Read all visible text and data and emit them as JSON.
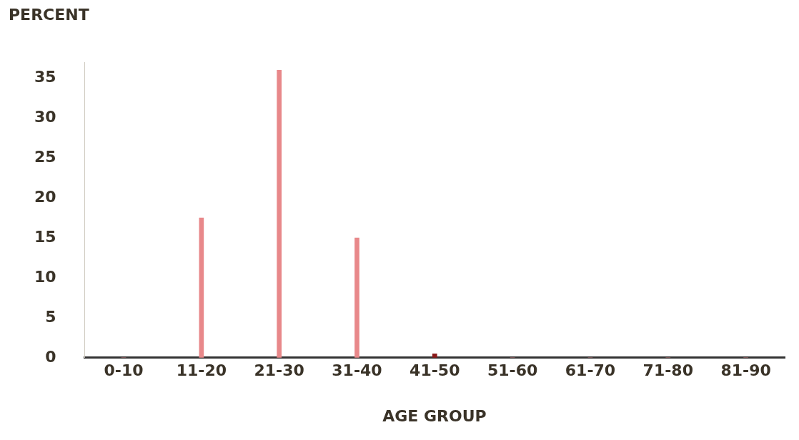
{
  "chart_data": {
    "type": "bar",
    "xlabel": "AGE GROUP",
    "ylabel": "PERCENT",
    "categories": [
      "0-10",
      "11-20",
      "21-30",
      "31-40",
      "41-50",
      "51-60",
      "61-70",
      "71-80",
      "81-90"
    ],
    "values": [
      0,
      17.5,
      36,
      15,
      0.5,
      0,
      0,
      0,
      0
    ],
    "colors": [
      "#e8888a",
      "#e8888a",
      "#e8888a",
      "#e8888a",
      "#8b1a1a",
      "#e8888a",
      "#e8888a",
      "#e8888a",
      "#e8888a"
    ],
    "ylim": [
      0,
      37
    ],
    "yticks": [
      0,
      5,
      10,
      15,
      20,
      25,
      30,
      35
    ],
    "grid": false,
    "legend": false
  }
}
